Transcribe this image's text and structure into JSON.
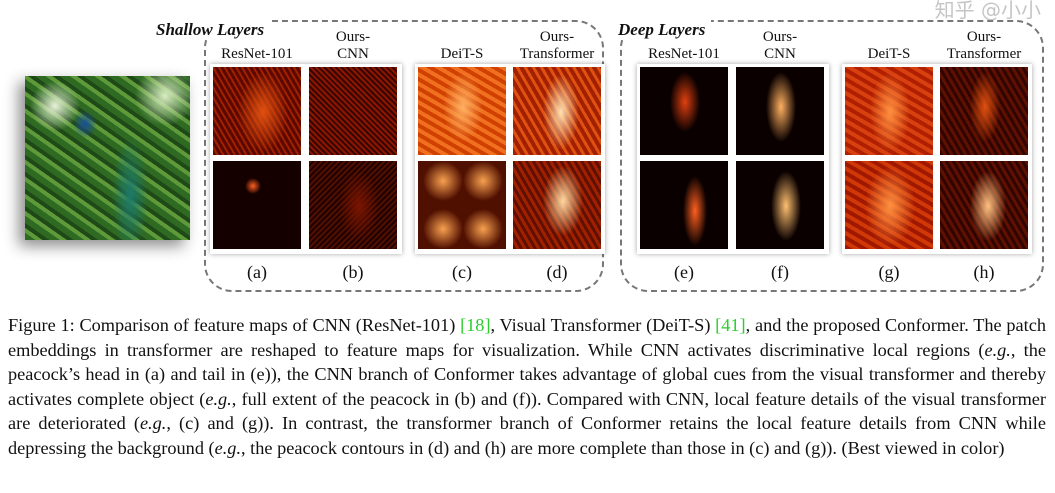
{
  "groups": {
    "shallow": "Shallow Layers",
    "deep": "Deep Layers"
  },
  "columns": [
    {
      "l1": "",
      "l2": "ResNet-101",
      "sub": "(a)"
    },
    {
      "l1": "Ours-",
      "l2": "CNN",
      "sub": "(b)"
    },
    {
      "l1": "",
      "l2": "DeiT-S",
      "sub": "(c)"
    },
    {
      "l1": "Ours-",
      "l2": "Transformer",
      "sub": "(d)"
    },
    {
      "l1": "",
      "l2": "ResNet-101",
      "sub": "(e)"
    },
    {
      "l1": "Ours-",
      "l2": "CNN",
      "sub": "(f)"
    },
    {
      "l1": "",
      "l2": "DeiT-S",
      "sub": "(g)"
    },
    {
      "l1": "Ours-",
      "l2": "Transformer",
      "sub": "(h)"
    }
  ],
  "caption": {
    "p1": "Figure 1:  Comparison of feature maps of CNN (ResNet-101) ",
    "c1": "[18]",
    "p2": ", Visual Transformer (DeiT-S) ",
    "c2": "[41]",
    "p3": ", and the proposed Conformer. The patch embeddings in transformer are reshaped to feature maps for visualization. While CNN activates discriminative local regions (",
    "eg1": "e.g.",
    "p4": ", the peacock’s head in (a) and tail in (e)), the CNN branch of Conformer takes advantage of global cues from the visual transformer and thereby activates complete object (",
    "eg2": "e.g.",
    "p5": ", full extent of the peacock in (b) and (f)). Compared with CNN, local feature details of the visual transformer are deteriorated (",
    "eg3": "e.g.",
    "p6": ", (c) and (g)). In contrast, the transformer branch of Conformer retains the local feature details from CNN while depressing the background (",
    "eg4": "e.g.",
    "p7": ", the peacock contours in (d) and (h) are more complete than those in (c) and (g)). (Best viewed in color)"
  },
  "watermark": "知乎 @小小",
  "colors": {
    "citation": "#2ecc2e",
    "heatmap_dark": "#1a0000",
    "heatmap_bright": "#ffd9a0"
  }
}
